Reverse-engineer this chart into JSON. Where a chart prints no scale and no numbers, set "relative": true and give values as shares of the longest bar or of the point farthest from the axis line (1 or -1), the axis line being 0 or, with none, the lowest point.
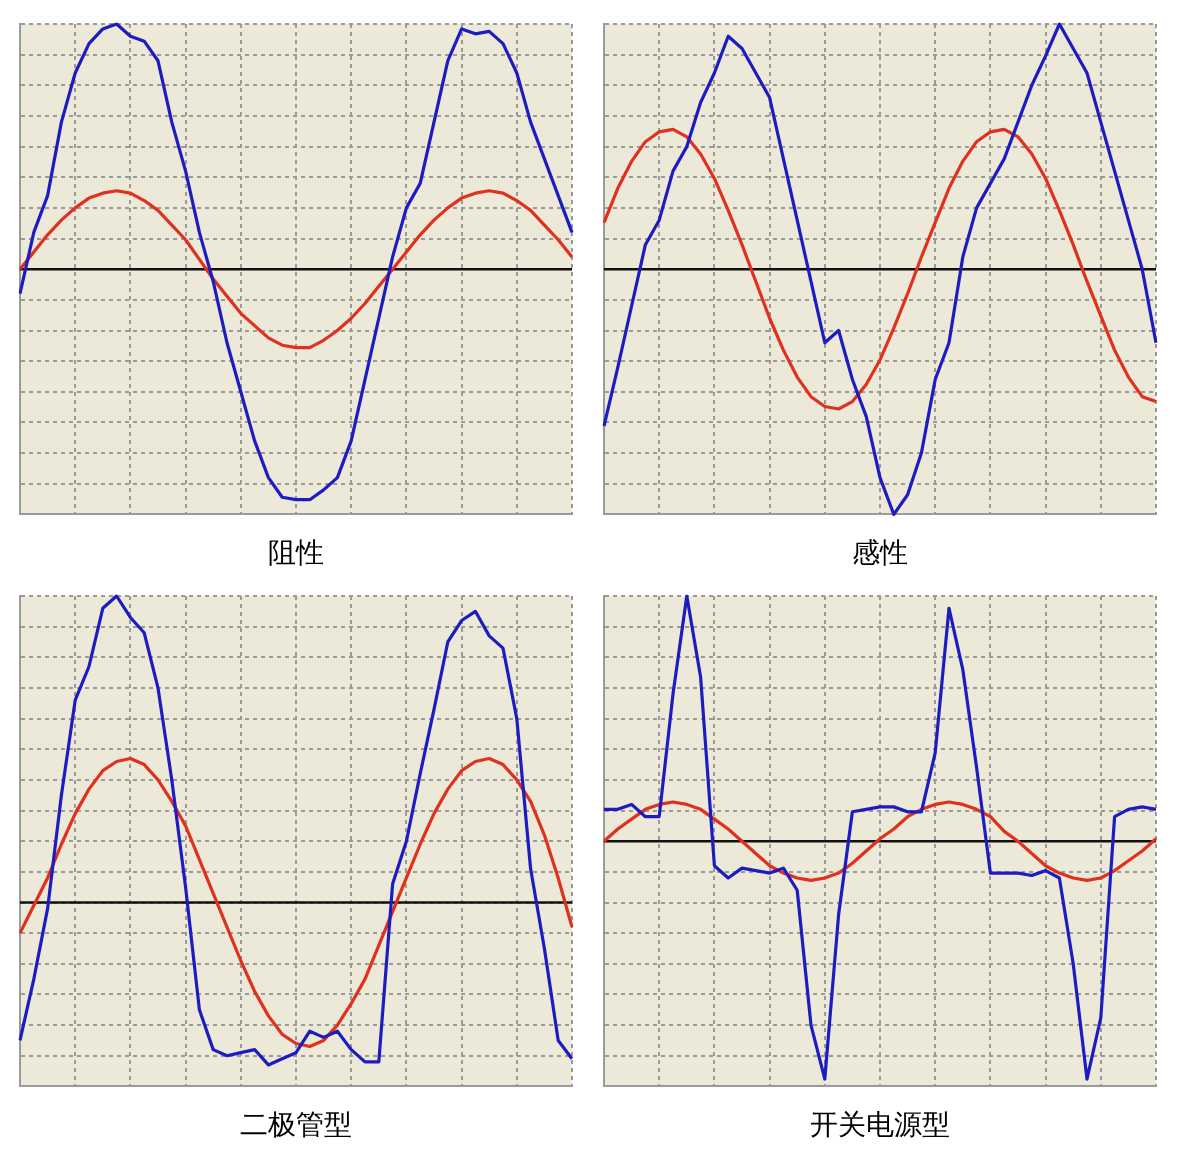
{
  "chart_data": [
    {
      "type": "line",
      "title": "阻性",
      "relative": true,
      "grid": true,
      "marker": "none",
      "line_style": "solid",
      "categories": [
        null,
        null,
        null,
        null,
        null,
        null,
        null,
        null,
        null,
        null,
        null,
        null,
        null,
        null,
        null,
        null,
        null,
        null,
        null,
        null,
        null,
        null,
        null,
        null,
        null,
        null,
        null,
        null,
        null,
        null,
        null,
        null,
        null,
        null,
        null,
        null,
        null,
        null,
        null,
        null,
        null
      ],
      "series": [
        {
          "color": "#1c1cc0",
          "values": [
            -0.1,
            0.15,
            0.3,
            0.6,
            0.8,
            0.92,
            0.98,
            1.0,
            0.95,
            0.93,
            0.85,
            0.6,
            0.4,
            0.15,
            -0.05,
            -0.3,
            -0.5,
            -0.7,
            -0.85,
            -0.93,
            -0.94,
            -0.94,
            -0.9,
            -0.85,
            -0.7,
            -0.45,
            -0.2,
            0.05,
            0.25,
            0.35,
            0.6,
            0.85,
            0.98,
            0.96,
            0.97,
            0.92,
            0.8,
            0.6,
            0.45,
            0.3,
            0.15
          ]
        },
        {
          "color": "#e0301e",
          "values": [
            0,
            0.07,
            0.14,
            0.2,
            0.25,
            0.29,
            0.31,
            0.32,
            0.31,
            0.28,
            0.24,
            0.18,
            0.12,
            0.04,
            -0.04,
            -0.11,
            -0.18,
            -0.23,
            -0.28,
            -0.31,
            -0.32,
            -0.32,
            -0.29,
            -0.25,
            -0.2,
            -0.14,
            -0.07,
            0,
            0.07,
            0.14,
            0.2,
            0.25,
            0.29,
            0.31,
            0.32,
            0.31,
            0.28,
            0.24,
            0.18,
            0.12,
            0.05
          ]
        }
      ]
    },
    {
      "type": "line",
      "title": "感性",
      "relative": true,
      "grid": true,
      "marker": "none",
      "line_style": "solid",
      "categories": [
        null,
        null,
        null,
        null,
        null,
        null,
        null,
        null,
        null,
        null,
        null,
        null,
        null,
        null,
        null,
        null,
        null,
        null,
        null,
        null,
        null,
        null,
        null,
        null,
        null,
        null,
        null,
        null,
        null,
        null,
        null,
        null,
        null,
        null,
        null,
        null,
        null,
        null,
        null,
        null,
        null
      ],
      "series": [
        {
          "color": "#1c1cc0",
          "values": [
            -0.64,
            -0.4,
            -0.15,
            0.1,
            0.2,
            0.4,
            0.5,
            0.68,
            0.8,
            0.95,
            0.9,
            0.8,
            0.7,
            0.45,
            0.2,
            -0.05,
            -0.3,
            -0.25,
            -0.45,
            -0.6,
            -0.85,
            -1.0,
            -0.92,
            -0.75,
            -0.45,
            -0.3,
            0.05,
            0.25,
            0.35,
            0.45,
            0.6,
            0.75,
            0.87,
            1.0,
            0.9,
            0.8,
            0.6,
            0.4,
            0.2,
            0.0,
            -0.3
          ]
        },
        {
          "color": "#e0301e",
          "values": [
            0.19,
            0.33,
            0.44,
            0.52,
            0.56,
            0.57,
            0.54,
            0.47,
            0.37,
            0.24,
            0.1,
            -0.05,
            -0.2,
            -0.33,
            -0.44,
            -0.52,
            -0.56,
            -0.57,
            -0.54,
            -0.47,
            -0.37,
            -0.24,
            -0.1,
            0.05,
            0.19,
            0.33,
            0.44,
            0.52,
            0.56,
            0.57,
            0.54,
            0.47,
            0.37,
            0.24,
            0.1,
            -0.05,
            -0.19,
            -0.33,
            -0.44,
            -0.52,
            -0.54
          ]
        }
      ]
    },
    {
      "type": "line",
      "title": "二极管型",
      "relative": true,
      "grid": true,
      "marker": "none",
      "line_style": "solid",
      "categories": [
        null,
        null,
        null,
        null,
        null,
        null,
        null,
        null,
        null,
        null,
        null,
        null,
        null,
        null,
        null,
        null,
        null,
        null,
        null,
        null,
        null,
        null,
        null,
        null,
        null,
        null,
        null,
        null,
        null,
        null,
        null,
        null,
        null,
        null,
        null,
        null,
        null,
        null,
        null,
        null,
        null
      ],
      "series": [
        {
          "color": "#1c1cc0",
          "values": [
            -0.45,
            -0.25,
            -0.02,
            0.35,
            0.66,
            0.77,
            0.96,
            1.0,
            0.93,
            0.88,
            0.7,
            0.4,
            0.05,
            -0.35,
            -0.48,
            -0.5,
            -0.49,
            -0.48,
            -0.53,
            -0.51,
            -0.49,
            -0.42,
            -0.44,
            -0.42,
            -0.48,
            -0.52,
            -0.52,
            0.06,
            0.2,
            0.42,
            0.63,
            0.85,
            0.92,
            0.95,
            0.87,
            0.83,
            0.6,
            0.11,
            -0.15,
            -0.45,
            -0.51
          ]
        },
        {
          "color": "#e0301e",
          "values": [
            -0.1,
            -0.01,
            0.08,
            0.19,
            0.29,
            0.37,
            0.43,
            0.46,
            0.47,
            0.45,
            0.4,
            0.33,
            0.25,
            0.14,
            0.03,
            -0.08,
            -0.19,
            -0.29,
            -0.37,
            -0.43,
            -0.46,
            -0.47,
            -0.45,
            -0.4,
            -0.33,
            -0.25,
            -0.14,
            -0.03,
            0.08,
            0.19,
            0.29,
            0.37,
            0.43,
            0.46,
            0.47,
            0.45,
            0.4,
            0.33,
            0.22,
            0.08,
            -0.08
          ]
        }
      ]
    },
    {
      "type": "line",
      "title": "开关电源型",
      "relative": true,
      "grid": true,
      "marker": "none",
      "line_style": "solid",
      "categories": [
        null,
        null,
        null,
        null,
        null,
        null,
        null,
        null,
        null,
        null,
        null,
        null,
        null,
        null,
        null,
        null,
        null,
        null,
        null,
        null,
        null,
        null,
        null,
        null,
        null,
        null,
        null,
        null,
        null,
        null,
        null,
        null,
        null,
        null,
        null,
        null,
        null,
        null,
        null,
        null,
        null
      ],
      "series": [
        {
          "color": "#1c1cc0",
          "values": [
            0.13,
            0.13,
            0.15,
            0.1,
            0.1,
            0.6,
            1.0,
            0.67,
            -0.1,
            -0.15,
            -0.11,
            -0.12,
            -0.13,
            -0.11,
            -0.2,
            -0.75,
            -0.97,
            -0.3,
            0.12,
            0.13,
            0.14,
            0.14,
            0.12,
            0.12,
            0.36,
            0.95,
            0.7,
            0.3,
            -0.13,
            -0.13,
            -0.13,
            -0.14,
            -0.12,
            -0.15,
            -0.5,
            -0.97,
            -0.72,
            0.1,
            0.13,
            0.14,
            0.13
          ]
        },
        {
          "color": "#e0301e",
          "values": [
            0,
            0.05,
            0.09,
            0.13,
            0.15,
            0.16,
            0.15,
            0.13,
            0.09,
            0.05,
            0,
            -0.05,
            -0.1,
            -0.13,
            -0.15,
            -0.16,
            -0.15,
            -0.13,
            -0.09,
            -0.04,
            0.01,
            0.05,
            0.1,
            0.13,
            0.15,
            0.16,
            0.15,
            0.13,
            0.1,
            0.04,
            0,
            -0.05,
            -0.1,
            -0.13,
            -0.15,
            -0.16,
            -0.15,
            -0.12,
            -0.08,
            -0.04,
            0.01
          ]
        }
      ]
    }
  ]
}
